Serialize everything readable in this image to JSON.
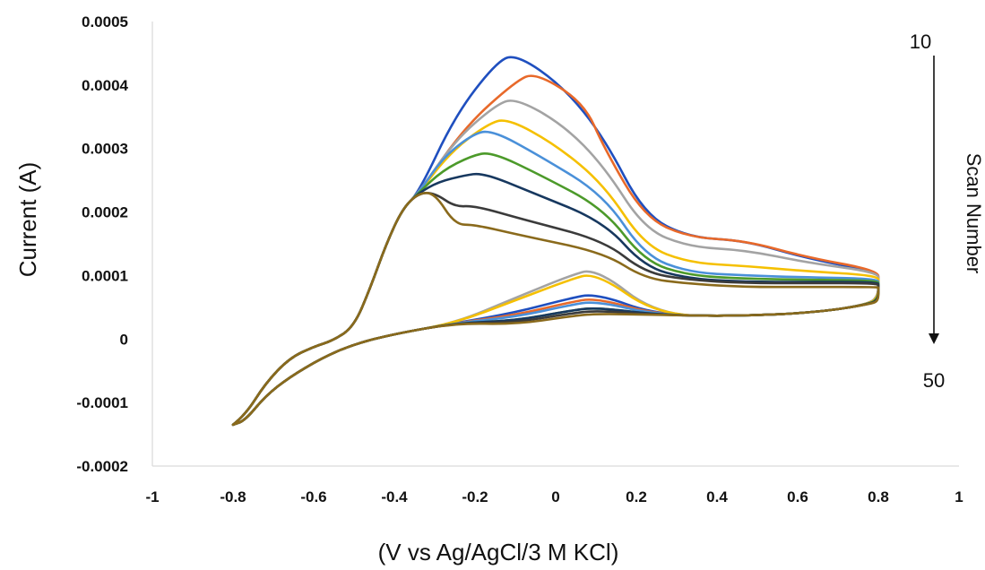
{
  "chart_data": {
    "type": "line",
    "title": "",
    "xlabel": "(V vs Ag/AgCl/3 M KCl)",
    "ylabel": "Current (A)",
    "xlim": [
      -1,
      1
    ],
    "ylim": [
      -0.0002,
      0.0005
    ],
    "x_ticks": [
      "-1",
      "-0.8",
      "-0.6",
      "-0.4",
      "-0.2",
      "0",
      "0.2",
      "0.4",
      "0.6",
      "0.8",
      "1"
    ],
    "y_ticks": [
      "0.0005",
      "0.0004",
      "0.0003",
      "0.0002",
      "0.0001",
      "0",
      "-0.0001",
      "-0.0002"
    ],
    "grid": false,
    "annotation": {
      "label": "Scan Number",
      "start": "10",
      "end": "50",
      "direction": "down"
    },
    "series": [
      {
        "color": "#1f4fbf",
        "anodic_peak": [
          -0.1,
          0.00045
        ],
        "shoulder": 0.000155,
        "end_high": 0.000105,
        "end_low": 9e-05,
        "return_peak": 7.2e-05
      },
      {
        "color": "#e8692a",
        "anodic_peak": [
          -0.05,
          0.00042
        ],
        "shoulder": 0.000155,
        "end_high": 0.000108,
        "end_low": 9e-05,
        "return_peak": 6.5e-05
      },
      {
        "color": "#a3a3a3",
        "anodic_peak": [
          -0.1,
          0.00038
        ],
        "shoulder": 0.00014,
        "end_high": 0.000105,
        "end_low": 9e-05,
        "return_peak": 0.000112
      },
      {
        "color": "#f5c000",
        "anodic_peak": [
          -0.12,
          0.000348
        ],
        "shoulder": 0.000115,
        "end_high": 0.0001,
        "end_low": 8.8e-05,
        "return_peak": 0.000105
      },
      {
        "color": "#4a90d9",
        "anodic_peak": [
          -0.16,
          0.00033
        ],
        "shoulder": 0.0001,
        "end_high": 9.5e-05,
        "end_low": 8.5e-05,
        "return_peak": 6e-05
      },
      {
        "color": "#4c9a2a",
        "anodic_peak": [
          -0.16,
          0.000295
        ],
        "shoulder": 9.5e-05,
        "end_high": 9.2e-05,
        "end_low": 8.5e-05,
        "return_peak": 5e-05
      },
      {
        "color": "#17385f",
        "anodic_peak": [
          -0.18,
          0.000262
        ],
        "shoulder": 9e-05,
        "end_high": 9e-05,
        "end_low": 8.3e-05,
        "return_peak": 5e-05
      },
      {
        "color": "#3b3b3b",
        "anodic_peak": [
          -0.2,
          0.00021
        ],
        "shoulder": 8.8e-05,
        "end_high": 8.8e-05,
        "end_low": 8.2e-05,
        "return_peak": 4.5e-05
      },
      {
        "color": "#8a6a1c",
        "anodic_peak": [
          -0.2,
          0.00018
        ],
        "shoulder": 8.2e-05,
        "end_high": 8.2e-05,
        "end_low": 8e-05,
        "return_peak": 4e-05
      }
    ]
  }
}
